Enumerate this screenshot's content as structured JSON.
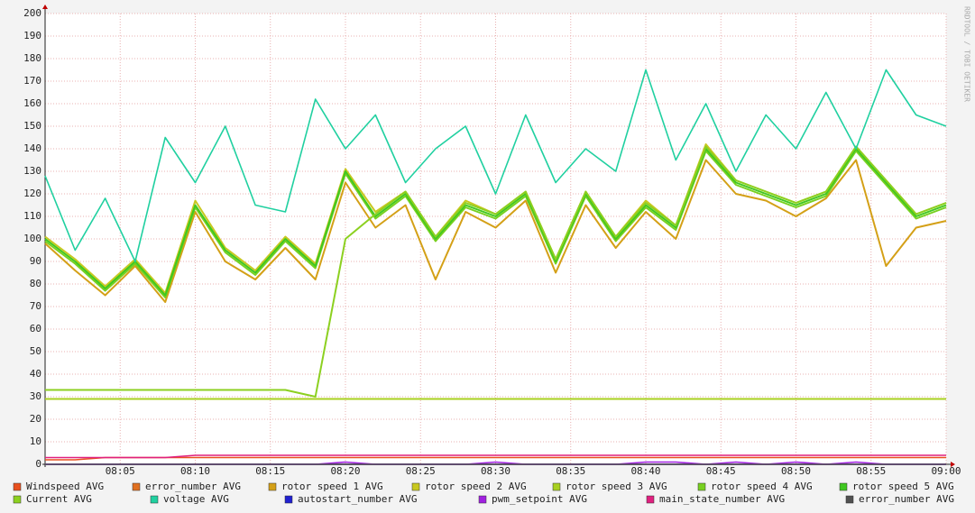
{
  "chart_data": {
    "type": "line",
    "watermark": "RRDTOOL / TOBI OETIKER",
    "x": [
      "08:00",
      "08:02",
      "08:04",
      "08:06",
      "08:08",
      "08:10",
      "08:12",
      "08:14",
      "08:16",
      "08:18",
      "08:20",
      "08:22",
      "08:24",
      "08:26",
      "08:28",
      "08:30",
      "08:32",
      "08:34",
      "08:36",
      "08:38",
      "08:40",
      "08:42",
      "08:44",
      "08:46",
      "08:48",
      "08:50",
      "08:52",
      "08:54",
      "08:56",
      "08:58",
      "09:00"
    ],
    "xticks": [
      "08:05",
      "08:10",
      "08:15",
      "08:20",
      "08:25",
      "08:30",
      "08:35",
      "08:40",
      "08:45",
      "08:50",
      "08:55",
      "09:00"
    ],
    "ylim": [
      0,
      200
    ],
    "yticks": [
      0,
      10,
      20,
      30,
      40,
      50,
      60,
      70,
      80,
      90,
      100,
      110,
      120,
      130,
      140,
      150,
      160,
      170,
      180,
      190,
      200
    ],
    "grid": true,
    "series": [
      {
        "name": "Windspeed AVG",
        "color": "#e8501e",
        "values": [
          2,
          2,
          3,
          3,
          3,
          3,
          3,
          3,
          3,
          3,
          3,
          3,
          3,
          3,
          3,
          3,
          3,
          3,
          3,
          3,
          3,
          3,
          3,
          3,
          3,
          3,
          3,
          3,
          3,
          3,
          3
        ]
      },
      {
        "name": "error_number AVG",
        "color": "#e07020",
        "values": [
          0,
          0,
          0,
          0,
          0,
          0,
          0,
          0,
          0,
          0,
          0,
          0,
          0,
          0,
          0,
          0,
          0,
          0,
          0,
          0,
          0,
          0,
          0,
          0,
          0,
          0,
          0,
          0,
          0,
          0,
          0
        ]
      },
      {
        "name": "rotor speed 1 AVG",
        "color": "#d4a017",
        "values": [
          98,
          86,
          75,
          88,
          72,
          112,
          90,
          82,
          96,
          82,
          125,
          105,
          115,
          82,
          112,
          105,
          117,
          85,
          115,
          96,
          112,
          100,
          135,
          120,
          117,
          110,
          118,
          135,
          88,
          105,
          108
        ]
      },
      {
        "name": "rotor speed 2 AVG",
        "color": "#c8c820",
        "values": [
          101,
          91,
          79,
          91,
          76,
          117,
          96,
          86,
          101,
          89,
          131,
          112,
          121,
          101,
          117,
          111,
          121,
          91,
          121,
          101,
          117,
          106,
          142,
          126,
          121,
          116,
          121,
          141,
          126,
          111,
          116
        ]
      },
      {
        "name": "rotor speed 3 AVG",
        "color": "#a8d020",
        "values": [
          29,
          29,
          29,
          29,
          29,
          29,
          29,
          29,
          29,
          29,
          29,
          29,
          29,
          29,
          29,
          29,
          29,
          29,
          29,
          29,
          29,
          29,
          29,
          29,
          29,
          29,
          29,
          29,
          29,
          29,
          29
        ]
      },
      {
        "name": "rotor speed 4 AVG",
        "color": "#78d020",
        "values": [
          99,
          89,
          77,
          89,
          74,
          114,
          94,
          84,
          99,
          87,
          129,
          109,
          119,
          99,
          114,
          109,
          119,
          89,
          119,
          99,
          114,
          104,
          139,
          124,
          119,
          114,
          119,
          139,
          124,
          109,
          114
        ]
      },
      {
        "name": "rotor speed 5 AVG",
        "color": "#40c820",
        "values": [
          100,
          90,
          78,
          90,
          75,
          115,
          95,
          85,
          100,
          88,
          130,
          110,
          120,
          100,
          115,
          110,
          120,
          90,
          120,
          100,
          115,
          105,
          140,
          125,
          120,
          115,
          120,
          140,
          125,
          110,
          115
        ]
      },
      {
        "name": "Current AVG",
        "color": "#8cd020",
        "values": [
          33,
          33,
          33,
          33,
          33,
          33,
          33,
          33,
          33,
          30,
          100,
          111,
          121,
          101,
          116,
          111,
          121,
          91,
          121,
          101,
          116,
          106,
          141,
          126,
          121,
          116,
          121,
          141,
          126,
          111,
          116
        ]
      },
      {
        "name": "voltage AVG",
        "color": "#20d0a0",
        "values": [
          128,
          95,
          118,
          90,
          145,
          125,
          150,
          115,
          112,
          162,
          140,
          155,
          125,
          140,
          150,
          120,
          155,
          125,
          140,
          130,
          175,
          135,
          160,
          130,
          155,
          140,
          165,
          140,
          175,
          155,
          150
        ]
      },
      {
        "name": "autostart_number AVG",
        "color": "#2020d0",
        "values": [
          0,
          0,
          0,
          0,
          0,
          0,
          0,
          0,
          0,
          0,
          0,
          0,
          0,
          0,
          0,
          0,
          0,
          0,
          0,
          0,
          0,
          0,
          0,
          0,
          0,
          0,
          0,
          0,
          0,
          0,
          0
        ]
      },
      {
        "name": "pwm_setpoint AVG",
        "color": "#a020e0",
        "values": [
          0,
          0,
          0,
          0,
          0,
          0,
          0,
          0,
          0,
          0,
          1,
          0,
          0,
          0,
          0,
          1,
          0,
          0,
          0,
          0,
          1,
          1,
          0,
          1,
          0,
          1,
          0,
          1,
          0,
          0,
          0
        ]
      },
      {
        "name": "main_state_number AVG",
        "color": "#e0207f",
        "values": [
          3,
          3,
          3,
          3,
          3,
          4,
          4,
          4,
          4,
          4,
          4,
          4,
          4,
          4,
          4,
          4,
          4,
          4,
          4,
          4,
          4,
          4,
          4,
          4,
          4,
          4,
          4,
          4,
          4,
          4,
          4
        ]
      },
      {
        "name": "error_number AVG",
        "color": "#505050",
        "values": [
          0,
          0,
          0,
          0,
          0,
          0,
          0,
          0,
          0,
          0,
          0,
          0,
          0,
          0,
          0,
          0,
          0,
          0,
          0,
          0,
          0,
          0,
          0,
          0,
          0,
          0,
          0,
          0,
          0,
          0,
          0
        ]
      }
    ]
  }
}
